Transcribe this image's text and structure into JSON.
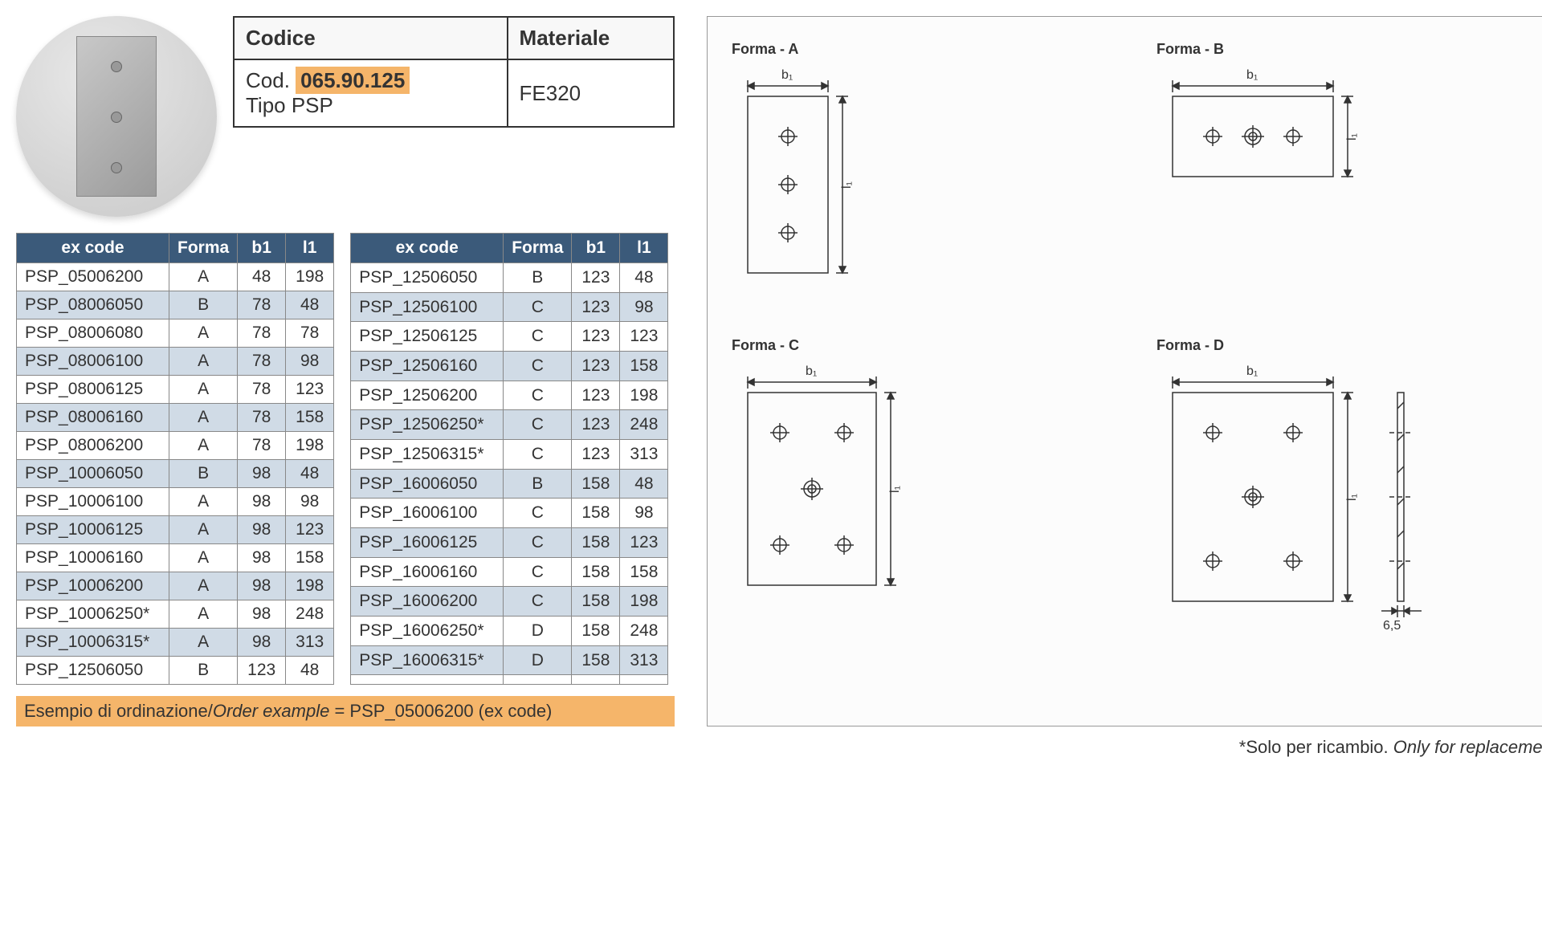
{
  "colors": {
    "header_bg": "#3b5a7a",
    "header_fg": "#ffffff",
    "row_alt": "#d0dbe6",
    "row_base": "#ffffff",
    "highlight_bg": "#f5b56a",
    "border": "#888888",
    "text": "#333333",
    "diagram_stroke": "#333333",
    "diagram_bg": "#fcfcfc"
  },
  "info": {
    "codice_label": "Codice",
    "materiale_label": "Materiale",
    "cod_prefix": "Cod.",
    "cod_value": "065.90.125",
    "tipo": "Tipo PSP",
    "materiale": "FE320"
  },
  "table_headers": {
    "excode": "ex code",
    "forma": "Forma",
    "b1": "b1",
    "l1": "l1"
  },
  "rows_left": [
    {
      "code": "PSP_05006200",
      "forma": "A",
      "b1": "48",
      "l1": "198"
    },
    {
      "code": "PSP_08006050",
      "forma": "B",
      "b1": "78",
      "l1": "48"
    },
    {
      "code": "PSP_08006080",
      "forma": "A",
      "b1": "78",
      "l1": "78"
    },
    {
      "code": "PSP_08006100",
      "forma": "A",
      "b1": "78",
      "l1": "98"
    },
    {
      "code": "PSP_08006125",
      "forma": "A",
      "b1": "78",
      "l1": "123"
    },
    {
      "code": "PSP_08006160",
      "forma": "A",
      "b1": "78",
      "l1": "158"
    },
    {
      "code": "PSP_08006200",
      "forma": "A",
      "b1": "78",
      "l1": "198"
    },
    {
      "code": "PSP_10006050",
      "forma": "B",
      "b1": "98",
      "l1": "48"
    },
    {
      "code": "PSP_10006100",
      "forma": "A",
      "b1": "98",
      "l1": "98"
    },
    {
      "code": "PSP_10006125",
      "forma": "A",
      "b1": "98",
      "l1": "123"
    },
    {
      "code": "PSP_10006160",
      "forma": "A",
      "b1": "98",
      "l1": "158"
    },
    {
      "code": "PSP_10006200",
      "forma": "A",
      "b1": "98",
      "l1": "198"
    },
    {
      "code": "PSP_10006250*",
      "forma": "A",
      "b1": "98",
      "l1": "248"
    },
    {
      "code": "PSP_10006315*",
      "forma": "A",
      "b1": "98",
      "l1": "313"
    },
    {
      "code": "PSP_12506050",
      "forma": "B",
      "b1": "123",
      "l1": "48"
    }
  ],
  "rows_right": [
    {
      "code": "PSP_12506050",
      "forma": "B",
      "b1": "123",
      "l1": "48"
    },
    {
      "code": "PSP_12506100",
      "forma": "C",
      "b1": "123",
      "l1": "98"
    },
    {
      "code": "PSP_12506125",
      "forma": "C",
      "b1": "123",
      "l1": "123"
    },
    {
      "code": "PSP_12506160",
      "forma": "C",
      "b1": "123",
      "l1": "158"
    },
    {
      "code": "PSP_12506200",
      "forma": "C",
      "b1": "123",
      "l1": "198"
    },
    {
      "code": "PSP_12506250*",
      "forma": "C",
      "b1": "123",
      "l1": "248"
    },
    {
      "code": "PSP_12506315*",
      "forma": "C",
      "b1": "123",
      "l1": "313"
    },
    {
      "code": "PSP_16006050",
      "forma": "B",
      "b1": "158",
      "l1": "48"
    },
    {
      "code": "PSP_16006100",
      "forma": "C",
      "b1": "158",
      "l1": "98"
    },
    {
      "code": "PSP_16006125",
      "forma": "C",
      "b1": "158",
      "l1": "123"
    },
    {
      "code": "PSP_16006160",
      "forma": "C",
      "b1": "158",
      "l1": "158"
    },
    {
      "code": "PSP_16006200",
      "forma": "C",
      "b1": "158",
      "l1": "198"
    },
    {
      "code": "PSP_16006250*",
      "forma": "D",
      "b1": "158",
      "l1": "248"
    },
    {
      "code": "PSP_16006315*",
      "forma": "D",
      "b1": "158",
      "l1": "313"
    },
    {
      "code": "",
      "forma": "",
      "b1": "",
      "l1": ""
    }
  ],
  "order_example": {
    "label_it": "Esempio di ordinazione",
    "label_en": "Order example",
    "value": "PSP_05006200 (ex code)"
  },
  "forms": {
    "a": {
      "title": "Forma - A",
      "b1": "b₁",
      "l1": "l₁"
    },
    "b": {
      "title": "Forma - B",
      "b1": "b₁",
      "l1": "l₁"
    },
    "c": {
      "title": "Forma - C",
      "b1": "b₁",
      "l1": "l₁"
    },
    "d": {
      "title": "Forma - D",
      "b1": "b₁",
      "l1": "l₁",
      "thickness": "6,5"
    }
  },
  "footnote": {
    "it": "*Solo per ricambio.",
    "en": "Only for replacement"
  }
}
